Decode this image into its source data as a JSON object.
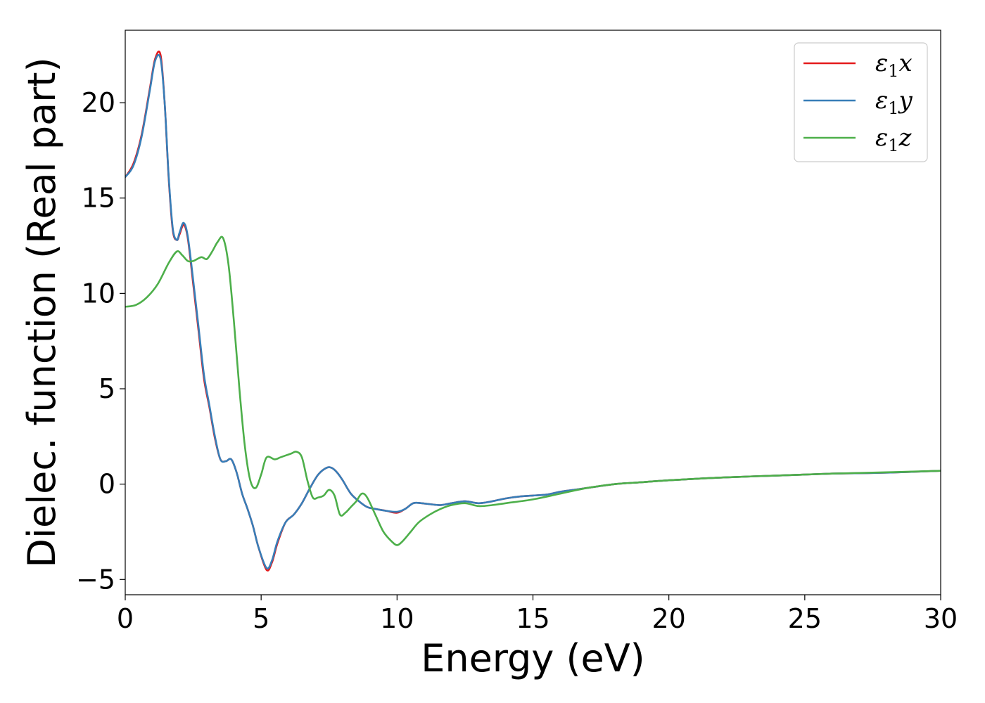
{
  "chart_data": {
    "type": "line",
    "xlabel": "Energy (eV)",
    "ylabel": "Dielec. function (Real part)",
    "xlim": [
      0,
      30
    ],
    "ylim": [
      -5.8,
      23.8
    ],
    "xticks": [
      0,
      5,
      10,
      15,
      20,
      25,
      30
    ],
    "yticks": [
      -5,
      0,
      5,
      10,
      15,
      20
    ],
    "xtick_labels": [
      "0",
      "5",
      "10",
      "15",
      "20",
      "25",
      "30"
    ],
    "ytick_labels": [
      "−5",
      "0",
      "5",
      "10",
      "15",
      "20"
    ],
    "grid": false,
    "legend_position": "top-right",
    "series": [
      {
        "name": "ε₁x",
        "legend_base": "ε",
        "legend_sub": "1",
        "legend_var": "x",
        "color": "#e41a1c",
        "x": [
          0,
          0.3,
          0.6,
          0.9,
          1.1,
          1.3,
          1.45,
          1.6,
          1.75,
          1.9,
          2.0,
          2.15,
          2.3,
          2.5,
          2.7,
          2.9,
          3.1,
          3.3,
          3.5,
          3.7,
          3.9,
          4.1,
          4.3,
          4.5,
          4.7,
          4.9,
          5.2,
          5.4,
          5.6,
          5.9,
          6.2,
          6.5,
          6.8,
          7.1,
          7.4,
          7.6,
          7.8,
          8.0,
          8.3,
          8.6,
          8.9,
          9.2,
          9.6,
          10.0,
          10.3,
          10.6,
          10.9,
          11.2,
          11.6,
          12.0,
          12.5,
          13.0,
          13.5,
          14.0,
          14.5,
          15.0,
          15.5,
          16.0,
          16.5,
          17.0,
          18.0,
          19.0,
          20.0,
          22.0,
          24.0,
          26.0,
          28.0,
          30.0
        ],
        "y": [
          16.1,
          16.8,
          18.3,
          20.7,
          22.3,
          22.5,
          20.0,
          16.0,
          13.3,
          12.8,
          13.1,
          13.6,
          12.9,
          10.5,
          8.0,
          5.5,
          4.0,
          2.4,
          1.3,
          1.2,
          1.3,
          0.6,
          -0.5,
          -1.3,
          -2.2,
          -3.3,
          -4.5,
          -4.1,
          -3.1,
          -2.0,
          -1.6,
          -1.0,
          -0.2,
          0.5,
          0.85,
          0.85,
          0.6,
          0.2,
          -0.5,
          -0.9,
          -1.2,
          -1.3,
          -1.4,
          -1.5,
          -1.3,
          -1.0,
          -1.0,
          -1.05,
          -1.1,
          -1.0,
          -0.9,
          -1.0,
          -0.9,
          -0.75,
          -0.65,
          -0.6,
          -0.55,
          -0.4,
          -0.3,
          -0.2,
          0.0,
          0.1,
          0.2,
          0.35,
          0.45,
          0.55,
          0.6,
          0.7
        ]
      },
      {
        "name": "ε₁y",
        "legend_base": "ε",
        "legend_sub": "1",
        "legend_var": "y",
        "color": "#377eb8",
        "x": [
          0,
          0.3,
          0.6,
          0.9,
          1.1,
          1.3,
          1.45,
          1.6,
          1.75,
          1.9,
          2.0,
          2.15,
          2.3,
          2.5,
          2.7,
          2.9,
          3.1,
          3.3,
          3.5,
          3.7,
          3.9,
          4.1,
          4.3,
          4.5,
          4.7,
          4.9,
          5.2,
          5.4,
          5.6,
          5.9,
          6.2,
          6.5,
          6.8,
          7.1,
          7.4,
          7.6,
          7.8,
          8.0,
          8.3,
          8.6,
          8.9,
          9.2,
          9.6,
          10.0,
          10.3,
          10.6,
          10.9,
          11.2,
          11.6,
          12.0,
          12.5,
          13.0,
          13.5,
          14.0,
          14.5,
          15.0,
          15.5,
          16.0,
          16.5,
          17.0,
          18.0,
          19.0,
          20.0,
          22.0,
          24.0,
          26.0,
          28.0,
          30.0
        ],
        "y": [
          16.1,
          16.7,
          18.2,
          20.6,
          22.2,
          22.3,
          20.0,
          16.1,
          13.4,
          12.8,
          13.2,
          13.7,
          13.0,
          10.7,
          8.2,
          5.7,
          4.1,
          2.5,
          1.3,
          1.2,
          1.3,
          0.6,
          -0.5,
          -1.3,
          -2.2,
          -3.3,
          -4.4,
          -4.0,
          -3.0,
          -2.0,
          -1.6,
          -1.0,
          -0.2,
          0.5,
          0.85,
          0.85,
          0.6,
          0.2,
          -0.5,
          -0.9,
          -1.2,
          -1.3,
          -1.4,
          -1.45,
          -1.3,
          -1.0,
          -1.0,
          -1.05,
          -1.1,
          -1.0,
          -0.9,
          -1.0,
          -0.9,
          -0.75,
          -0.65,
          -0.6,
          -0.55,
          -0.4,
          -0.3,
          -0.2,
          0.0,
          0.1,
          0.2,
          0.35,
          0.45,
          0.55,
          0.6,
          0.7
        ]
      },
      {
        "name": "ε₁z",
        "legend_base": "ε",
        "legend_sub": "1",
        "legend_var": "z",
        "color": "#4daf4a",
        "x": [
          0,
          0.4,
          0.8,
          1.2,
          1.6,
          1.9,
          2.1,
          2.3,
          2.5,
          2.8,
          3.0,
          3.2,
          3.4,
          3.6,
          3.8,
          4.0,
          4.2,
          4.4,
          4.6,
          4.8,
          5.0,
          5.2,
          5.5,
          5.7,
          5.9,
          6.1,
          6.3,
          6.5,
          6.7,
          6.9,
          7.1,
          7.3,
          7.5,
          7.7,
          7.9,
          8.1,
          8.3,
          8.5,
          8.7,
          8.9,
          9.2,
          9.5,
          9.8,
          10.0,
          10.2,
          10.5,
          10.8,
          11.2,
          11.6,
          12.0,
          12.5,
          13.0,
          13.5,
          14.0,
          15.0,
          16.0,
          17.0,
          18.0,
          19.0,
          20.0,
          22.0,
          24.0,
          26.0,
          28.0,
          30.0
        ],
        "y": [
          9.3,
          9.4,
          9.8,
          10.5,
          11.6,
          12.2,
          12.0,
          11.7,
          11.7,
          11.9,
          11.8,
          12.2,
          12.7,
          12.9,
          11.5,
          8.5,
          5.0,
          2.0,
          0.2,
          -0.2,
          0.5,
          1.4,
          1.3,
          1.4,
          1.5,
          1.6,
          1.7,
          1.4,
          0.2,
          -0.7,
          -0.7,
          -0.6,
          -0.3,
          -0.6,
          -1.6,
          -1.5,
          -1.2,
          -0.9,
          -0.5,
          -0.7,
          -1.6,
          -2.5,
          -3.0,
          -3.2,
          -3.0,
          -2.5,
          -2.0,
          -1.6,
          -1.3,
          -1.1,
          -1.0,
          -1.15,
          -1.1,
          -1.0,
          -0.8,
          -0.5,
          -0.2,
          0.0,
          0.1,
          0.2,
          0.35,
          0.45,
          0.55,
          0.62,
          0.7
        ]
      }
    ]
  }
}
